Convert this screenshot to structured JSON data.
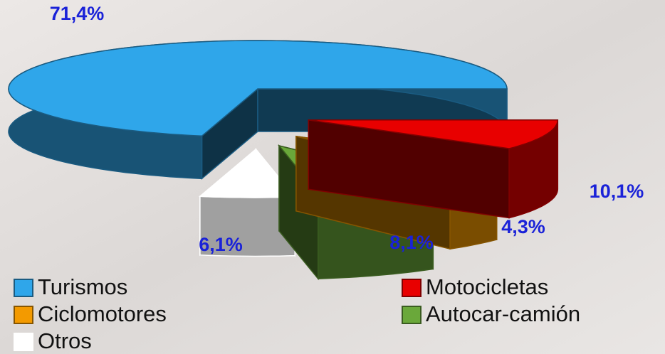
{
  "chart_data": {
    "type": "pie",
    "categories": [
      "Turismos",
      "Motocicletas",
      "Ciclomotores",
      "Autocar-camión",
      "Otros"
    ],
    "values": [
      71.4,
      10.1,
      4.3,
      8.1,
      6.1
    ],
    "value_labels": [
      "71,4%",
      "10,1%",
      "4,3%",
      "8,1%",
      "6,1%"
    ],
    "colors": [
      "#2fa6ea",
      "#e80000",
      "#f39a00",
      "#6aa83a",
      "#ffffff"
    ]
  }
}
